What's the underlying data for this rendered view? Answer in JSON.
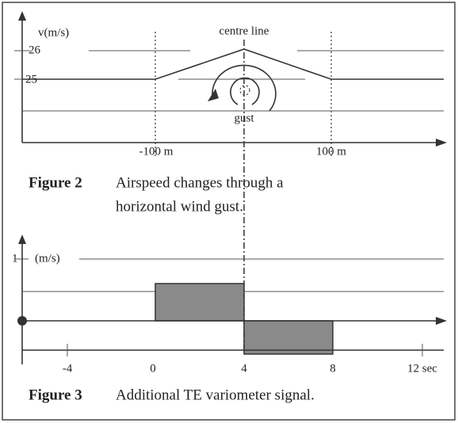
{
  "figure2": {
    "y_axis_label": "v(m/s)",
    "tick_26": "26",
    "tick_25": "25",
    "centre_label": "centre line",
    "gust_label": "gust",
    "x_left": "-100 m",
    "x_right": "100 m",
    "caption_number": "Figure 2",
    "caption_line1": "Airspeed changes through a",
    "caption_line2": "horizontal wind gust."
  },
  "figure3": {
    "tick_1": "1",
    "unit_label": "(m/s)",
    "x_ticks": [
      "-4",
      "0",
      "4",
      "8",
      "12 sec"
    ],
    "caption_number": "Figure 3",
    "caption_text": "Additional TE variometer signal."
  }
}
